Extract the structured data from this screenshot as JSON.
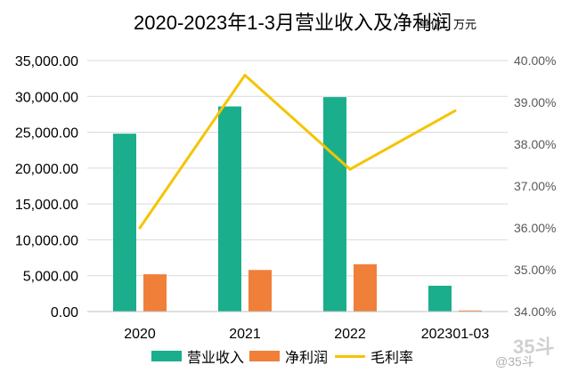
{
  "title": {
    "main": "2020-2023年1-3月营业收入及净利润",
    "unit": "单位：万元"
  },
  "chart_data": {
    "type": "bar",
    "categories": [
      "2020",
      "2021",
      "2022",
      "202301-03"
    ],
    "series": [
      {
        "name": "营业收入",
        "kind": "bar",
        "axis": "left",
        "color": "#1aae8c",
        "values": [
          24800,
          28600,
          29900,
          3600
        ]
      },
      {
        "name": "净利润",
        "kind": "bar",
        "axis": "left",
        "color": "#f07f3a",
        "values": [
          5200,
          5800,
          6600,
          150
        ]
      },
      {
        "name": "毛利率",
        "kind": "line",
        "axis": "right",
        "color": "#f5c400",
        "values": [
          36.0,
          39.65,
          37.4,
          38.8
        ]
      }
    ],
    "y_left": {
      "min": 0,
      "max": 35000,
      "ticks": [
        "0.00",
        "5,000.00",
        "10,000.00",
        "15,000.00",
        "20,000.00",
        "25,000.00",
        "30,000.00",
        "35,000.00"
      ]
    },
    "y_right": {
      "min": 34.0,
      "max": 40.0,
      "unit": "%",
      "ticks": [
        "34.00%",
        "35.00%",
        "36.00%",
        "37.00%",
        "38.00%",
        "39.00%",
        "40.00%"
      ]
    },
    "grid": true,
    "legend_position": "bottom"
  },
  "legend": [
    {
      "label": "营业收入",
      "type": "bar",
      "color": "#1aae8c"
    },
    {
      "label": "净利润",
      "type": "bar",
      "color": "#f07f3a"
    },
    {
      "label": "毛利率",
      "type": "line",
      "color": "#f5c400"
    }
  ],
  "watermark": {
    "big": "35斗",
    "small": "@35斗"
  }
}
